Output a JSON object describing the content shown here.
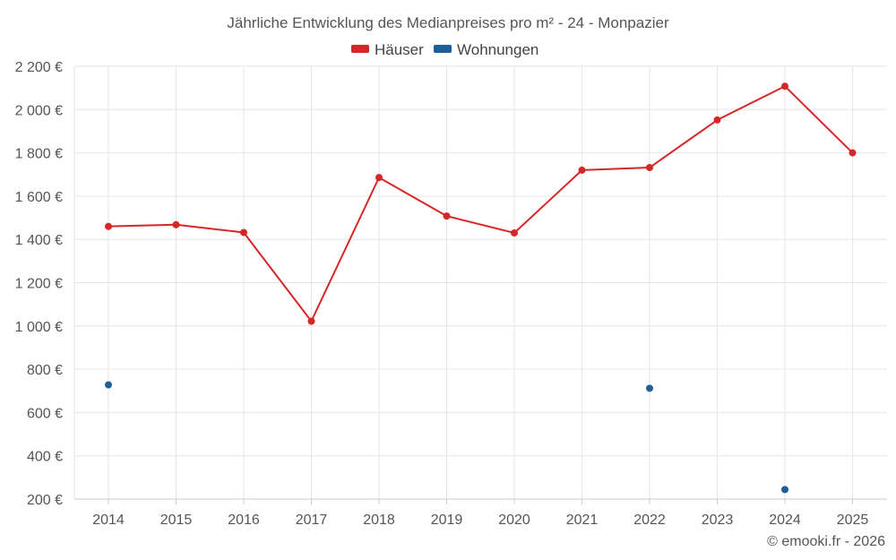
{
  "chart_data": {
    "type": "line",
    "title": "Jährliche Entwicklung des Medianpreises pro m² - 24 - Monpazier",
    "categories": [
      "2014",
      "2015",
      "2016",
      "2017",
      "2018",
      "2019",
      "2020",
      "2021",
      "2022",
      "2023",
      "2024",
      "2025"
    ],
    "y_ticks": [
      "200 €",
      "400 €",
      "600 €",
      "800 €",
      "1 000 €",
      "1 200 €",
      "1 400 €",
      "1 600 €",
      "1 800 €",
      "2 000 €",
      "2 200 €"
    ],
    "ylim": [
      200,
      2200
    ],
    "grid": true,
    "legend_position": "top-center",
    "series": [
      {
        "name": "Häuser",
        "color": "#d62728",
        "values": [
          1460,
          1468,
          1432,
          1022,
          1686,
          1508,
          1430,
          1720,
          1732,
          1952,
          2108,
          1800
        ]
      },
      {
        "name": "Wohnungen",
        "color": "#1f5f99",
        "values": [
          728,
          null,
          null,
          null,
          null,
          null,
          null,
          null,
          712,
          null,
          244,
          null
        ]
      }
    ]
  },
  "credit": "© emooki.fr - 2026"
}
